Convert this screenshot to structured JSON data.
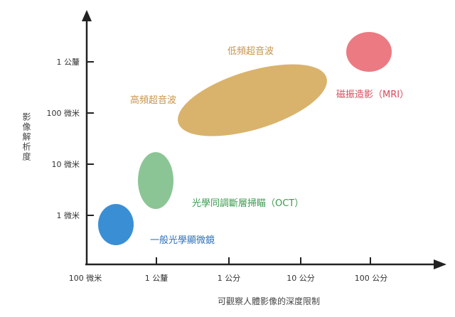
{
  "chart_data": {
    "type": "diagram",
    "x_axis": {
      "label": "可觀察人體影像的深度限制",
      "ticks": [
        "100 微米",
        "1 公釐",
        "1 公分",
        "10 公分",
        "100 公分"
      ]
    },
    "y_axis": {
      "label": "影像解析度",
      "ticks": [
        "1 微米",
        "10 微米",
        "100 微米",
        "1 公釐"
      ]
    },
    "regions": [
      {
        "key": "microscope",
        "label": "一般光學顯微鏡",
        "color": "#3a8fd4",
        "label_color": "#2f6fb8"
      },
      {
        "key": "oct",
        "label": "光學同調斷層掃瞄（OCT）",
        "color": "#8cc595",
        "label_color": "#3c9a4e"
      },
      {
        "key": "hf_ultrasound",
        "label": "高頻超音波",
        "color": "#d9b36c",
        "label_color": "#c8954a"
      },
      {
        "key": "lf_ultrasound",
        "label": "低頻超音波",
        "color": "#d9b36c",
        "label_color": "#c8954a"
      },
      {
        "key": "mri",
        "label": "磁振造影（MRI）",
        "color": "#ec7a82",
        "label_color": "#d9485a"
      }
    ]
  }
}
